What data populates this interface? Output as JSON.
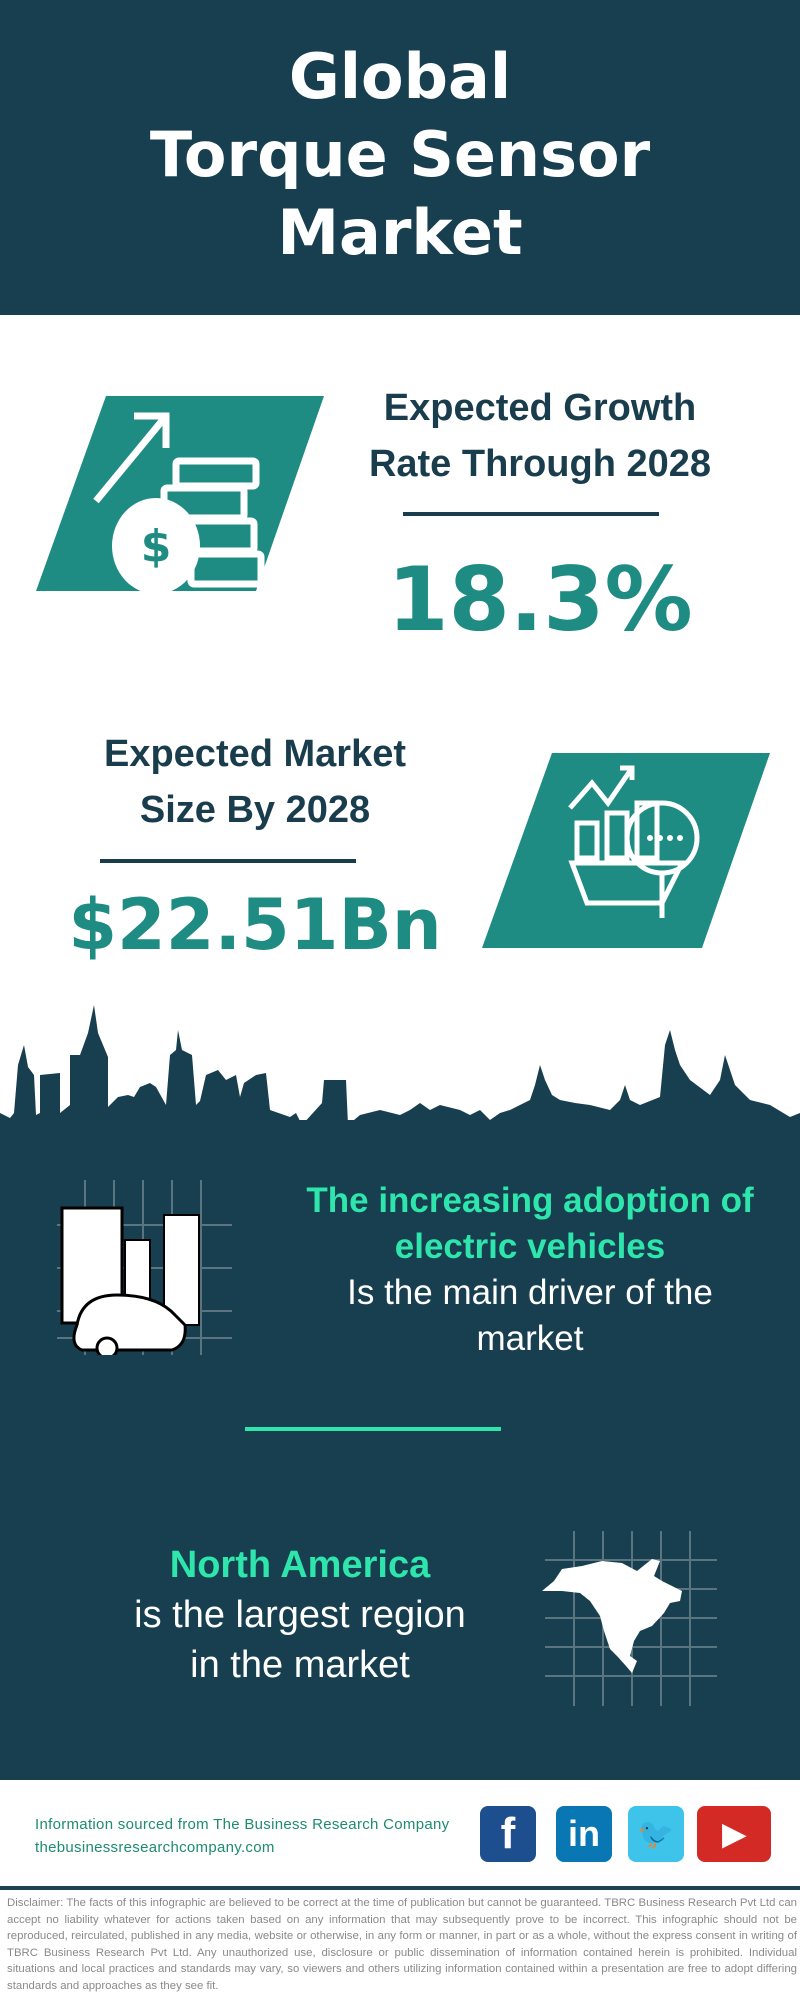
{
  "header": {
    "title_lines": [
      "Global",
      "Torque Sensor",
      "Market"
    ]
  },
  "growth": {
    "label_lines": [
      "Expected Growth",
      "Rate Through 2028"
    ],
    "value": "18.3%",
    "icon": "money-growth-icon"
  },
  "market_size": {
    "label_lines": [
      "Expected Market",
      "Size By 2028"
    ],
    "value": "$22.51Bn",
    "icon": "market-analysis-icon"
  },
  "driver": {
    "highlight_lines": [
      "The increasing adoption of",
      "electric vehicles"
    ],
    "text_lines": [
      "Is the main driver of the",
      "market"
    ],
    "icon": "ev-charging-icon"
  },
  "region": {
    "highlight": "North America",
    "text_lines": [
      "is the largest region",
      "in the market"
    ],
    "icon": "north-america-map-icon"
  },
  "footer": {
    "source_line": "Information sourced from The Business Research Company",
    "website": "thebusinessresearchcompany.com",
    "social": [
      {
        "name": "facebook",
        "glyph": "f",
        "color": "#1d4f8f"
      },
      {
        "name": "linkedin",
        "glyph": "in",
        "color": "#0a77b5"
      },
      {
        "name": "twitter",
        "glyph": "🐦",
        "color": "#3ec3ea"
      },
      {
        "name": "youtube",
        "glyph": "▶",
        "color": "#d42a26"
      }
    ],
    "disclaimer": "Disclaimer: The facts of this infographic are believed to be correct at the time of publication but cannot be guaranteed. TBRC Business Research Pvt Ltd can accept no liability whatever for actions taken based on any information that may subsequently prove to be incorrect. This infographic should not be reproduced, reirculated, published in any media, website or otherwise, in any form or manner, in part or as a whole, without the express consent in writing of TBRC Business Research Pvt Ltd. Any unauthorized use, disclosure or public dissemination of information contained herein is prohibited. Individual situations and local practices and standards may vary, so viewers and others utilizing information contained within a presentation are free to adopt differing standards and approaches as they see fit."
  },
  "colors": {
    "dark": "#173f4f",
    "teal": "#1e8c82",
    "green": "#2ee6ac"
  }
}
